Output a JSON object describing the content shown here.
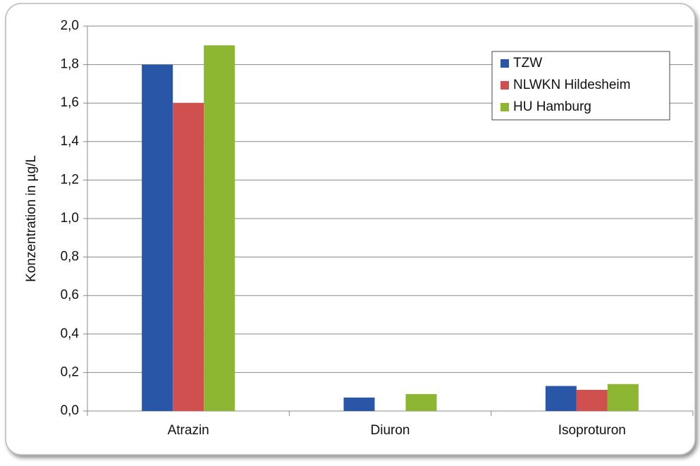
{
  "chart_data": {
    "type": "bar",
    "y_label": "Konzentration in µg/L",
    "categories": [
      "Atrazin",
      "Diuron",
      "Isoproturon"
    ],
    "series": [
      {
        "name": "TZW",
        "color": "#2a56a8",
        "values": [
          1.8,
          0.07,
          0.13
        ]
      },
      {
        "name": "NLWKN Hildesheim",
        "color": "#d0504f",
        "values": [
          1.6,
          null,
          0.11
        ]
      },
      {
        "name": "HU Hamburg",
        "color": "#8db733",
        "values": [
          1.9,
          0.088,
          0.14
        ]
      }
    ],
    "ylim": [
      0,
      2.0
    ],
    "yticks": [
      {
        "value": 0,
        "label": "0,0"
      },
      {
        "value": 0.2,
        "label": "0,2"
      },
      {
        "value": 0.4,
        "label": "0,4"
      },
      {
        "value": 0.6,
        "label": "0,6"
      },
      {
        "value": 0.8,
        "label": "0,8"
      },
      {
        "value": 1.0,
        "label": "1,0"
      },
      {
        "value": 1.2,
        "label": "1,2"
      },
      {
        "value": 1.4,
        "label": "1,4"
      },
      {
        "value": 1.6,
        "label": "1,6"
      },
      {
        "value": 1.8,
        "label": "1,8"
      },
      {
        "value": 2.0,
        "label": "2,0"
      }
    ],
    "grid": true,
    "legend": "top-right"
  }
}
